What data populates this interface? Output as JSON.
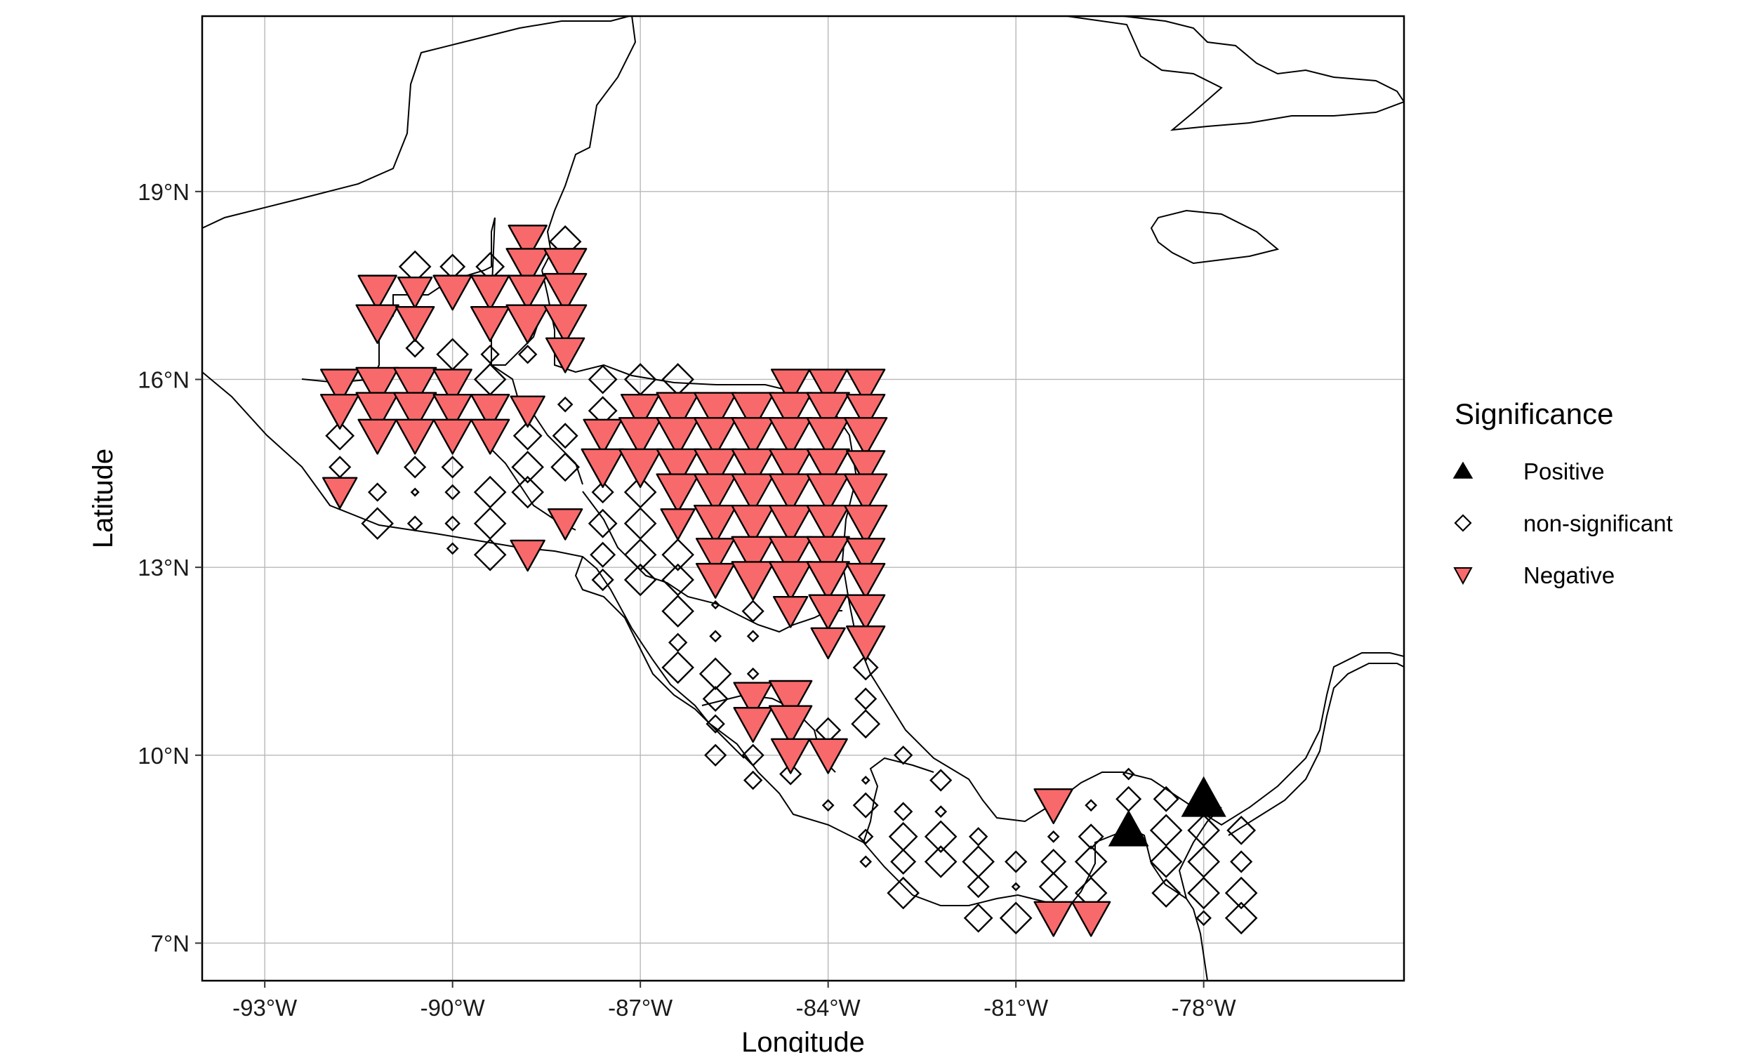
{
  "chart_data": {
    "type": "scatter",
    "xlabel": "Longitude",
    "ylabel": "Latitude",
    "xlim": [
      -94.0,
      -74.8
    ],
    "ylim": [
      6.4,
      21.8
    ],
    "grid": true,
    "x_ticks": [
      {
        "value": -93,
        "label": "-93°W"
      },
      {
        "value": -90,
        "label": "-90°W"
      },
      {
        "value": -87,
        "label": "-87°W"
      },
      {
        "value": -84,
        "label": "-84°W"
      },
      {
        "value": -81,
        "label": "-81°W"
      },
      {
        "value": -78,
        "label": "-78°W"
      }
    ],
    "y_ticks": [
      {
        "value": 7,
        "label": "7°N"
      },
      {
        "value": 10,
        "label": "10°N"
      },
      {
        "value": 13,
        "label": "13°N"
      },
      {
        "value": 16,
        "label": "16°N"
      },
      {
        "value": 19,
        "label": "19°N"
      }
    ],
    "legend": {
      "title": "Significance",
      "placement": "right",
      "entries": [
        {
          "name": "Positive",
          "shape": "triangle-up",
          "color": "#000000"
        },
        {
          "name": "non-significant",
          "shape": "diamond",
          "color": "#ffffff"
        },
        {
          "name": "Negative",
          "shape": "triangle-down",
          "color": "#f8696b"
        }
      ]
    },
    "colors": {
      "negative": "#f8696b",
      "positive": "#000000",
      "nonsig": "#ffffff"
    },
    "series": [
      {
        "name": "Negative",
        "points": [
          [
            -88.8,
            18.2,
            0.9
          ],
          [
            -88.8,
            17.8,
            1.0
          ],
          [
            -88.2,
            17.8,
            1.0
          ],
          [
            -91.2,
            17.4,
            0.9
          ],
          [
            -90.6,
            17.4,
            0.8
          ],
          [
            -90.0,
            17.4,
            0.9
          ],
          [
            -89.4,
            17.4,
            0.9
          ],
          [
            -88.8,
            17.4,
            0.9
          ],
          [
            -88.2,
            17.4,
            1.0
          ],
          [
            -91.2,
            16.9,
            1.0
          ],
          [
            -90.6,
            16.9,
            0.9
          ],
          [
            -89.4,
            16.9,
            0.9
          ],
          [
            -88.8,
            16.9,
            1.0
          ],
          [
            -88.2,
            16.9,
            1.0
          ],
          [
            -88.2,
            16.4,
            0.9
          ],
          [
            -91.8,
            15.9,
            0.9
          ],
          [
            -91.2,
            15.9,
            1.0
          ],
          [
            -90.6,
            15.9,
            1.0
          ],
          [
            -90.0,
            15.9,
            0.9
          ],
          [
            -84.6,
            15.9,
            0.9
          ],
          [
            -84.0,
            15.9,
            0.9
          ],
          [
            -83.4,
            15.9,
            0.9
          ],
          [
            -91.8,
            15.5,
            0.9
          ],
          [
            -91.2,
            15.5,
            1.0
          ],
          [
            -90.6,
            15.5,
            1.0
          ],
          [
            -90.0,
            15.5,
            0.9
          ],
          [
            -89.4,
            15.5,
            0.9
          ],
          [
            -88.8,
            15.5,
            0.8
          ],
          [
            -87.0,
            15.5,
            0.9
          ],
          [
            -86.4,
            15.5,
            1.0
          ],
          [
            -85.8,
            15.5,
            1.0
          ],
          [
            -85.2,
            15.5,
            1.0
          ],
          [
            -84.6,
            15.5,
            1.0
          ],
          [
            -84.0,
            15.5,
            1.0
          ],
          [
            -83.4,
            15.5,
            0.9
          ],
          [
            -91.2,
            15.1,
            0.9
          ],
          [
            -90.6,
            15.1,
            0.9
          ],
          [
            -90.0,
            15.1,
            0.9
          ],
          [
            -89.4,
            15.1,
            0.9
          ],
          [
            -87.6,
            15.1,
            0.9
          ],
          [
            -87.0,
            15.1,
            1.0
          ],
          [
            -86.4,
            15.1,
            1.0
          ],
          [
            -85.8,
            15.1,
            1.0
          ],
          [
            -85.2,
            15.1,
            1.0
          ],
          [
            -84.6,
            15.1,
            1.0
          ],
          [
            -84.0,
            15.1,
            1.0
          ],
          [
            -83.4,
            15.1,
            1.0
          ],
          [
            -87.6,
            14.6,
            1.0
          ],
          [
            -87.0,
            14.6,
            1.0
          ],
          [
            -86.4,
            14.6,
            1.0
          ],
          [
            -85.8,
            14.6,
            1.0
          ],
          [
            -85.2,
            14.6,
            1.0
          ],
          [
            -84.6,
            14.6,
            1.0
          ],
          [
            -84.0,
            14.6,
            1.0
          ],
          [
            -83.4,
            14.6,
            0.9
          ],
          [
            -91.8,
            14.2,
            0.8
          ],
          [
            -86.4,
            14.2,
            1.0
          ],
          [
            -85.8,
            14.2,
            1.0
          ],
          [
            -85.2,
            14.2,
            1.0
          ],
          [
            -84.6,
            14.2,
            1.0
          ],
          [
            -84.0,
            14.2,
            1.0
          ],
          [
            -83.4,
            14.2,
            1.0
          ],
          [
            -88.2,
            13.7,
            0.8
          ],
          [
            -86.4,
            13.7,
            0.8
          ],
          [
            -85.8,
            13.7,
            1.0
          ],
          [
            -85.2,
            13.7,
            1.0
          ],
          [
            -84.6,
            13.7,
            1.0
          ],
          [
            -84.0,
            13.7,
            1.0
          ],
          [
            -83.4,
            13.7,
            1.0
          ],
          [
            -88.8,
            13.2,
            0.8
          ],
          [
            -85.8,
            13.2,
            0.9
          ],
          [
            -85.2,
            13.2,
            1.0
          ],
          [
            -84.6,
            13.2,
            1.0
          ],
          [
            -84.0,
            13.2,
            1.0
          ],
          [
            -83.4,
            13.2,
            0.9
          ],
          [
            -85.8,
            12.8,
            0.9
          ],
          [
            -85.2,
            12.8,
            1.0
          ],
          [
            -84.6,
            12.8,
            1.0
          ],
          [
            -84.0,
            12.8,
            1.0
          ],
          [
            -83.4,
            12.8,
            0.9
          ],
          [
            -84.6,
            12.3,
            0.8
          ],
          [
            -84.0,
            12.3,
            0.9
          ],
          [
            -83.4,
            12.3,
            0.9
          ],
          [
            -84.0,
            11.8,
            0.8
          ],
          [
            -83.4,
            11.8,
            0.9
          ],
          [
            -85.2,
            10.9,
            0.9
          ],
          [
            -84.6,
            10.9,
            1.0
          ],
          [
            -85.2,
            10.5,
            0.9
          ],
          [
            -84.6,
            10.5,
            1.0
          ],
          [
            -84.6,
            10.0,
            0.9
          ],
          [
            -84.0,
            10.0,
            0.9
          ],
          [
            -80.4,
            9.2,
            0.9
          ],
          [
            -80.4,
            7.4,
            0.9
          ],
          [
            -79.8,
            7.4,
            0.9
          ]
        ]
      },
      {
        "name": "Positive",
        "points": [
          [
            -79.2,
            8.8,
            0.85
          ],
          [
            -78.0,
            9.3,
            0.95
          ]
        ]
      },
      {
        "name": "non-significant",
        "points": [
          [
            -88.2,
            18.2,
            0.9
          ],
          [
            -90.6,
            17.8,
            0.9
          ],
          [
            -90.0,
            17.8,
            0.7
          ],
          [
            -89.4,
            17.8,
            0.8
          ],
          [
            -90.6,
            16.5,
            0.5
          ],
          [
            -90.0,
            16.4,
            0.9
          ],
          [
            -89.4,
            16.4,
            0.5
          ],
          [
            -88.8,
            16.4,
            0.5
          ],
          [
            -89.4,
            16.0,
            0.9
          ],
          [
            -87.6,
            16.0,
            0.8
          ],
          [
            -87.0,
            16.0,
            0.9
          ],
          [
            -86.4,
            16.0,
            0.9
          ],
          [
            -88.2,
            15.6,
            0.4
          ],
          [
            -87.6,
            15.5,
            0.8
          ],
          [
            -91.8,
            15.1,
            0.8
          ],
          [
            -88.8,
            15.1,
            0.8
          ],
          [
            -88.2,
            15.1,
            0.7
          ],
          [
            -91.8,
            14.6,
            0.6
          ],
          [
            -90.6,
            14.6,
            0.6
          ],
          [
            -90.0,
            14.6,
            0.6
          ],
          [
            -88.8,
            14.6,
            0.9
          ],
          [
            -88.2,
            14.6,
            0.8
          ],
          [
            -91.2,
            14.2,
            0.5
          ],
          [
            -90.6,
            14.2,
            0.2
          ],
          [
            -90.0,
            14.2,
            0.4
          ],
          [
            -89.4,
            14.2,
            0.9
          ],
          [
            -88.8,
            14.2,
            0.9
          ],
          [
            -87.6,
            14.2,
            0.6
          ],
          [
            -87.0,
            14.2,
            0.9
          ],
          [
            -91.2,
            13.7,
            0.9
          ],
          [
            -90.6,
            13.7,
            0.4
          ],
          [
            -90.0,
            13.7,
            0.4
          ],
          [
            -89.4,
            13.7,
            0.9
          ],
          [
            -87.6,
            13.7,
            0.8
          ],
          [
            -87.0,
            13.7,
            0.9
          ],
          [
            -90.0,
            13.3,
            0.3
          ],
          [
            -89.4,
            13.2,
            0.9
          ],
          [
            -87.6,
            13.2,
            0.7
          ],
          [
            -87.0,
            13.2,
            0.9
          ],
          [
            -86.4,
            13.2,
            0.9
          ],
          [
            -87.6,
            12.8,
            0.6
          ],
          [
            -87.0,
            12.8,
            0.9
          ],
          [
            -86.4,
            12.8,
            0.9
          ],
          [
            -86.4,
            12.3,
            0.9
          ],
          [
            -85.8,
            12.4,
            0.2
          ],
          [
            -85.2,
            12.3,
            0.6
          ],
          [
            -86.4,
            11.8,
            0.5
          ],
          [
            -85.8,
            11.9,
            0.3
          ],
          [
            -85.2,
            11.9,
            0.3
          ],
          [
            -86.4,
            11.4,
            0.9
          ],
          [
            -85.8,
            11.3,
            0.9
          ],
          [
            -85.2,
            11.3,
            0.3
          ],
          [
            -83.4,
            11.4,
            0.7
          ],
          [
            -85.8,
            10.9,
            0.7
          ],
          [
            -83.4,
            10.9,
            0.6
          ],
          [
            -85.8,
            10.5,
            0.5
          ],
          [
            -84.0,
            10.4,
            0.7
          ],
          [
            -83.4,
            10.5,
            0.8
          ],
          [
            -85.8,
            10.0,
            0.6
          ],
          [
            -85.2,
            10.0,
            0.6
          ],
          [
            -82.8,
            10.0,
            0.5
          ],
          [
            -85.2,
            9.6,
            0.5
          ],
          [
            -84.6,
            9.7,
            0.6
          ],
          [
            -83.4,
            9.6,
            0.2
          ],
          [
            -82.2,
            9.6,
            0.6
          ],
          [
            -84.0,
            9.2,
            0.3
          ],
          [
            -83.4,
            9.2,
            0.7
          ],
          [
            -82.8,
            9.1,
            0.5
          ],
          [
            -82.2,
            9.1,
            0.3
          ],
          [
            -80.4,
            9.2,
            0.3
          ],
          [
            -79.8,
            9.2,
            0.3
          ],
          [
            -79.2,
            9.3,
            0.7
          ],
          [
            -78.6,
            9.3,
            0.7
          ],
          [
            -79.2,
            9.7,
            0.3
          ],
          [
            -83.4,
            8.7,
            0.4
          ],
          [
            -82.8,
            8.7,
            0.8
          ],
          [
            -82.2,
            8.7,
            0.9
          ],
          [
            -81.6,
            8.7,
            0.5
          ],
          [
            -80.4,
            8.7,
            0.3
          ],
          [
            -79.8,
            8.7,
            0.7
          ],
          [
            -78.6,
            8.8,
            0.9
          ],
          [
            -78.0,
            8.8,
            0.9
          ],
          [
            -77.4,
            8.8,
            0.8
          ],
          [
            -83.4,
            8.3,
            0.3
          ],
          [
            -82.8,
            8.3,
            0.7
          ],
          [
            -82.2,
            8.3,
            0.9
          ],
          [
            -81.6,
            8.3,
            0.9
          ],
          [
            -81.0,
            8.3,
            0.6
          ],
          [
            -80.4,
            8.3,
            0.7
          ],
          [
            -79.8,
            8.3,
            0.9
          ],
          [
            -78.6,
            8.3,
            0.9
          ],
          [
            -78.0,
            8.3,
            0.9
          ],
          [
            -77.4,
            8.3,
            0.6
          ],
          [
            -82.8,
            7.8,
            0.9
          ],
          [
            -81.6,
            7.9,
            0.6
          ],
          [
            -81.0,
            7.9,
            0.2
          ],
          [
            -80.4,
            7.9,
            0.8
          ],
          [
            -79.8,
            7.8,
            0.9
          ],
          [
            -78.6,
            7.8,
            0.8
          ],
          [
            -78.0,
            7.8,
            0.9
          ],
          [
            -77.4,
            7.8,
            0.9
          ],
          [
            -81.6,
            7.4,
            0.8
          ],
          [
            -81.0,
            7.4,
            0.9
          ],
          [
            -78.0,
            7.4,
            0.4
          ],
          [
            -77.4,
            7.4,
            0.9
          ]
        ]
      }
    ]
  }
}
